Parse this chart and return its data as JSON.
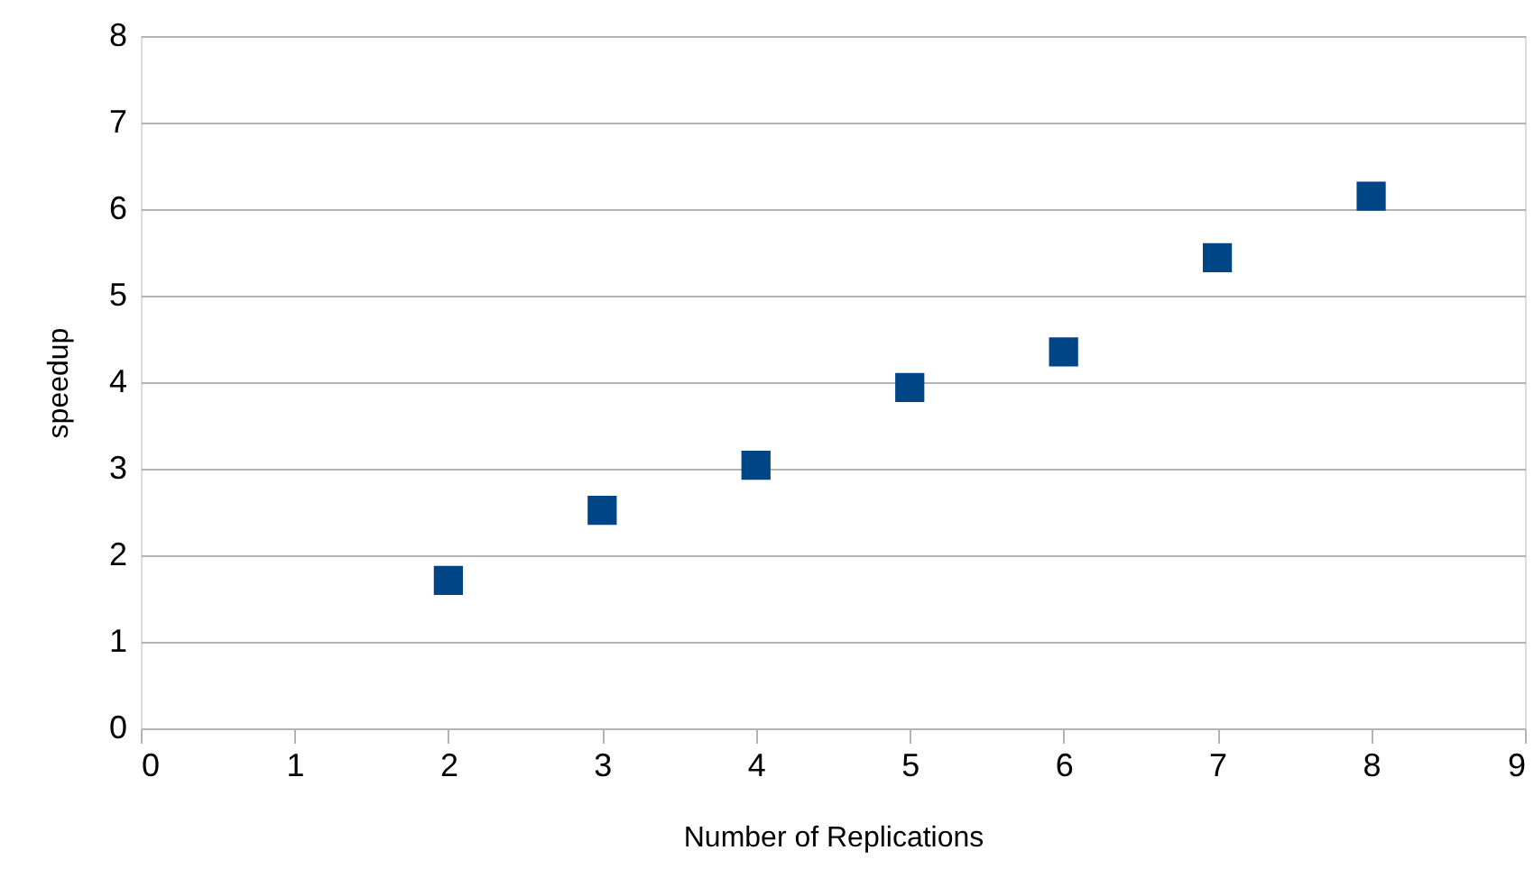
{
  "chart_data": {
    "type": "scatter",
    "xlabel": "Number of Replications",
    "ylabel": "speedup",
    "x": [
      2,
      3,
      4,
      5,
      6,
      7,
      8
    ],
    "series": [
      {
        "color": "#004586",
        "values": [
          1.71,
          2.52,
          3.04,
          3.94,
          4.35,
          5.44,
          6.15
        ]
      }
    ],
    "xlim": [
      0,
      9
    ],
    "xticks": [
      0,
      1,
      2,
      3,
      4,
      5,
      6,
      7,
      8,
      9
    ],
    "ylim": [
      0,
      8
    ],
    "yticks": [
      0,
      1,
      2,
      3,
      4,
      5,
      6,
      7,
      8
    ],
    "grid": "y",
    "marker": "square"
  }
}
